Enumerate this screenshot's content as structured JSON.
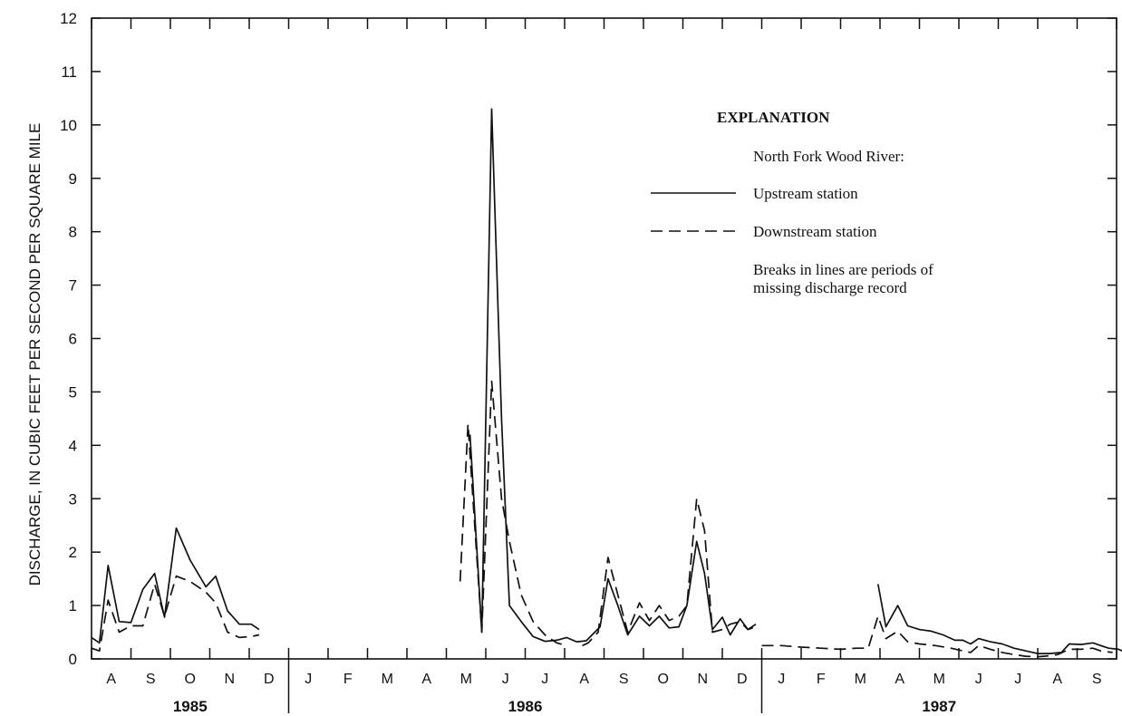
{
  "chart_data": {
    "type": "line",
    "title": "",
    "ylabel": "DISCHARGE, IN CUBIC FEET PER SECOND PER SQUARE MILE",
    "xlabel": "",
    "ylim": [
      0,
      12
    ],
    "yticks": [
      0,
      1,
      2,
      3,
      4,
      5,
      6,
      7,
      8,
      9,
      10,
      11,
      12
    ],
    "month_labels": [
      "A",
      "S",
      "O",
      "N",
      "D",
      "J",
      "F",
      "M",
      "A",
      "M",
      "J",
      "J",
      "A",
      "S",
      "O",
      "N",
      "D",
      "J",
      "F",
      "M",
      "A",
      "M",
      "J",
      "J",
      "A",
      "S"
    ],
    "month_start_index": 7,
    "month_count": 26,
    "years": [
      {
        "label": "1985",
        "start": 7,
        "end": 12
      },
      {
        "label": "1986",
        "start": 12,
        "end": 24
      },
      {
        "label": "1987",
        "start": 24,
        "end": 33
      }
    ],
    "legend": {
      "title": "EXPLANATION",
      "subtitle": "North Fork Wood River:",
      "upstream_label": "Upstream station",
      "downstream_label": "Downstream station",
      "note_line1": "Breaks in lines are periods of",
      "note_line2": "missing discharge record"
    },
    "x_unit": "months since January 1985",
    "series": [
      {
        "name": "Upstream station",
        "style": "solid",
        "segments": [
          [
            [
              7.0,
              0.4
            ],
            [
              7.2,
              0.3
            ],
            [
              7.42,
              1.75
            ],
            [
              7.7,
              0.7
            ],
            [
              8.0,
              0.68
            ],
            [
              8.3,
              1.3
            ],
            [
              8.6,
              1.6
            ],
            [
              8.85,
              0.78
            ],
            [
              9.15,
              2.45
            ],
            [
              9.5,
              1.85
            ],
            [
              9.9,
              1.35
            ],
            [
              10.15,
              1.55
            ],
            [
              10.45,
              0.9
            ],
            [
              10.75,
              0.65
            ],
            [
              11.05,
              0.65
            ],
            [
              11.25,
              0.55
            ]
          ],
          [
            [
              16.6,
              4.2
            ],
            [
              16.9,
              0.5
            ],
            [
              17.15,
              10.3
            ],
            [
              17.4,
              4.5
            ],
            [
              17.6,
              1.0
            ],
            [
              17.9,
              0.7
            ],
            [
              18.2,
              0.42
            ],
            [
              18.5,
              0.33
            ],
            [
              18.8,
              0.35
            ],
            [
              19.05,
              0.4
            ],
            [
              19.3,
              0.32
            ],
            [
              19.55,
              0.34
            ],
            [
              19.9,
              0.6
            ],
            [
              20.1,
              1.5
            ],
            [
              20.35,
              1.0
            ],
            [
              20.6,
              0.45
            ],
            [
              20.9,
              0.8
            ],
            [
              21.15,
              0.62
            ],
            [
              21.4,
              0.8
            ],
            [
              21.65,
              0.58
            ],
            [
              21.9,
              0.6
            ],
            [
              22.1,
              1.0
            ],
            [
              22.35,
              2.2
            ],
            [
              22.55,
              1.6
            ],
            [
              22.75,
              0.55
            ],
            [
              23.0,
              0.78
            ],
            [
              23.2,
              0.45
            ],
            [
              23.45,
              0.75
            ],
            [
              23.65,
              0.55
            ],
            [
              23.85,
              0.65
            ]
          ],
          [
            [
              26.95,
              1.4
            ],
            [
              27.15,
              0.6
            ],
            [
              27.45,
              1.0
            ],
            [
              27.7,
              0.62
            ],
            [
              28.0,
              0.55
            ],
            [
              28.3,
              0.52
            ],
            [
              28.6,
              0.45
            ],
            [
              28.9,
              0.35
            ],
            [
              29.1,
              0.35
            ],
            [
              29.3,
              0.28
            ],
            [
              29.5,
              0.38
            ],
            [
              29.8,
              0.32
            ],
            [
              30.1,
              0.28
            ],
            [
              30.4,
              0.2
            ],
            [
              30.7,
              0.15
            ],
            [
              31.0,
              0.1
            ],
            [
              31.3,
              0.1
            ],
            [
              31.6,
              0.12
            ],
            [
              31.8,
              0.28
            ],
            [
              32.1,
              0.27
            ],
            [
              32.4,
              0.3
            ],
            [
              32.6,
              0.25
            ],
            [
              32.8,
              0.2
            ],
            [
              33.05,
              0.18
            ],
            [
              33.3,
              0.1
            ]
          ]
        ]
      },
      {
        "name": "Downstream station",
        "style": "dashed",
        "segments": [
          [
            [
              7.0,
              0.2
            ],
            [
              7.2,
              0.15
            ],
            [
              7.42,
              1.1
            ],
            [
              7.7,
              0.5
            ],
            [
              8.0,
              0.62
            ],
            [
              8.3,
              0.62
            ],
            [
              8.6,
              1.4
            ],
            [
              8.85,
              0.8
            ],
            [
              9.15,
              1.55
            ],
            [
              9.5,
              1.45
            ],
            [
              9.9,
              1.25
            ],
            [
              10.15,
              1.05
            ],
            [
              10.45,
              0.5
            ],
            [
              10.75,
              0.4
            ],
            [
              11.05,
              0.42
            ],
            [
              11.25,
              0.45
            ]
          ],
          [
            [
              16.35,
              1.45
            ],
            [
              16.55,
              4.4
            ],
            [
              16.9,
              0.5
            ],
            [
              17.15,
              5.2
            ],
            [
              17.4,
              3.0
            ],
            [
              17.6,
              2.2
            ],
            [
              17.9,
              1.2
            ],
            [
              18.2,
              0.7
            ],
            [
              18.5,
              0.45
            ],
            [
              18.8,
              0.3
            ],
            [
              19.05,
              0.25
            ]
          ],
          [
            [
              19.45,
              0.25
            ],
            [
              19.6,
              0.3
            ],
            [
              19.85,
              0.5
            ],
            [
              20.1,
              1.9
            ],
            [
              20.35,
              1.2
            ],
            [
              20.6,
              0.5
            ],
            [
              20.9,
              1.05
            ],
            [
              21.15,
              0.72
            ],
            [
              21.4,
              1.0
            ],
            [
              21.65,
              0.72
            ],
            [
              21.9,
              0.8
            ],
            [
              22.1,
              1.0
            ],
            [
              22.35,
              3.0
            ],
            [
              22.55,
              2.4
            ],
            [
              22.75,
              0.5
            ],
            [
              23.0,
              0.55
            ],
            [
              23.2,
              0.65
            ],
            [
              23.45,
              0.7
            ],
            [
              23.65,
              0.55
            ],
            [
              23.85,
              0.6
            ]
          ],
          [
            [
              24.0,
              0.25
            ],
            [
              24.5,
              0.25
            ],
            [
              25.0,
              0.22
            ],
            [
              25.5,
              0.2
            ],
            [
              26.0,
              0.18
            ],
            [
              26.4,
              0.2
            ],
            [
              26.7,
              0.2
            ],
            [
              26.95,
              0.8
            ],
            [
              27.15,
              0.38
            ],
            [
              27.45,
              0.52
            ],
            [
              27.7,
              0.32
            ],
            [
              28.0,
              0.28
            ],
            [
              28.4,
              0.25
            ],
            [
              28.8,
              0.2
            ],
            [
              29.1,
              0.15
            ],
            [
              29.3,
              0.12
            ],
            [
              29.5,
              0.25
            ],
            [
              29.8,
              0.18
            ],
            [
              30.1,
              0.12
            ],
            [
              30.4,
              0.08
            ],
            [
              30.7,
              0.05
            ],
            [
              31.0,
              0.04
            ],
            [
              31.3,
              0.06
            ],
            [
              31.5,
              0.08
            ],
            [
              31.8,
              0.18
            ],
            [
              32.1,
              0.18
            ],
            [
              32.4,
              0.2
            ],
            [
              32.6,
              0.15
            ],
            [
              32.9,
              0.12
            ]
          ]
        ]
      }
    ]
  }
}
